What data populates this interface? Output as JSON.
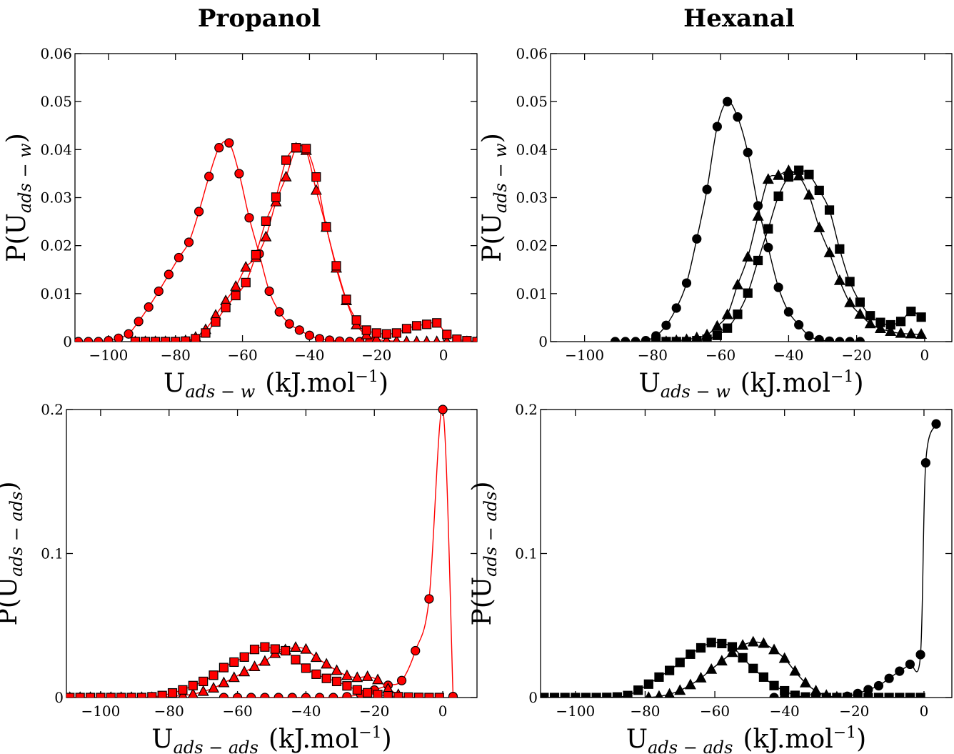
{
  "titles": {
    "left": "Propanol",
    "right": "Hexanal"
  },
  "colors": {
    "propanol": "#ff0000",
    "hexanal": "#000000",
    "edge": "#000000"
  },
  "chart_data": [
    {
      "type": "line",
      "panel": "top-left",
      "title": "Propanol",
      "xlabel_main": "U",
      "xlabel_sub": "ads − w",
      "xlabel_unit": "(kJ.mol",
      "xlabel_sup": "−1",
      "ylabel_main": "P(U",
      "ylabel_sub": "ads − w",
      "xlim": [
        -110,
        10
      ],
      "ylim": [
        0,
        0.06
      ],
      "xticks": [
        -100,
        -80,
        -60,
        -40,
        -20,
        0
      ],
      "xtick_labels": [
        "−100",
        "−80",
        "−60",
        "−40",
        "−20",
        "0"
      ],
      "yticks": [
        0,
        0.01,
        0.02,
        0.03,
        0.04,
        0.05,
        0.06
      ],
      "ytick_labels": [
        "0",
        "0.01",
        "0.02",
        "0.03",
        "0.04",
        "0.05",
        "0.06"
      ],
      "series": [
        {
          "marker": "circle",
          "x": [
            -109,
            -106,
            -103,
            -100,
            -97,
            -94,
            -91,
            -88,
            -85,
            -82,
            -79,
            -76,
            -73,
            -70,
            -67,
            -64,
            -61,
            -58,
            -55,
            -52,
            -49,
            -46,
            -43,
            -40,
            -37,
            -34,
            -31,
            -28,
            -25,
            -22
          ],
          "y": [
            0,
            0,
            0,
            0.0002,
            0.0007,
            0.0016,
            0.0042,
            0.0072,
            0.0105,
            0.014,
            0.0175,
            0.0207,
            0.0271,
            0.0344,
            0.0404,
            0.0414,
            0.035,
            0.0258,
            0.0183,
            0.0105,
            0.0062,
            0.0037,
            0.0024,
            0.0013,
            0.0006,
            0.0003,
            0.0001,
            0,
            0,
            0
          ]
        },
        {
          "marker": "triangle",
          "x": [
            -92,
            -89,
            -86,
            -83,
            -80,
            -77,
            -74,
            -71,
            -68,
            -65,
            -62,
            -59,
            -56,
            -53,
            -50,
            -47,
            -44,
            -41,
            -38,
            -35,
            -32,
            -29,
            -26,
            -23,
            -20,
            -17,
            -14,
            -11,
            -8,
            -5,
            -2,
            1,
            4,
            7,
            10
          ],
          "y": [
            0,
            0,
            0,
            0,
            0,
            0.0002,
            0.0009,
            0.0025,
            0.0055,
            0.0085,
            0.0115,
            0.0155,
            0.0175,
            0.0218,
            0.0291,
            0.0343,
            0.0403,
            0.0398,
            0.0315,
            0.0238,
            0.0153,
            0.0085,
            0.0035,
            0.0014,
            0.0005,
            0.0002,
            0.0001,
            0,
            0,
            0,
            0,
            0,
            0,
            0,
            0
          ]
        },
        {
          "marker": "square",
          "x": [
            -92,
            -89,
            -86,
            -83,
            -80,
            -77,
            -74,
            -71,
            -68,
            -65,
            -62,
            -59,
            -56,
            -53,
            -50,
            -47,
            -44,
            -41,
            -38,
            -35,
            -32,
            -29,
            -26,
            -23,
            -20,
            -17,
            -14,
            -11,
            -8,
            -5,
            -2,
            1,
            4,
            7,
            10
          ],
          "y": [
            0,
            0,
            0,
            0,
            0,
            0.0001,
            0.0006,
            0.0018,
            0.0041,
            0.0071,
            0.0096,
            0.0123,
            0.0181,
            0.0251,
            0.0301,
            0.0378,
            0.0404,
            0.0402,
            0.0343,
            0.0239,
            0.0158,
            0.0088,
            0.0045,
            0.0024,
            0.0018,
            0.0016,
            0.0018,
            0.0027,
            0.0033,
            0.0036,
            0.0039,
            0.0015,
            0.0005,
            0.0002,
            0
          ]
        }
      ]
    },
    {
      "type": "line",
      "panel": "top-right",
      "title": "Hexanal",
      "xlabel_main": "U",
      "xlabel_sub": "ads − w",
      "xlabel_unit": "(kJ.mol",
      "xlabel_sup": "−1",
      "ylabel_main": "P(U",
      "ylabel_sub": "ads − w",
      "xlim": [
        -110,
        8
      ],
      "ylim": [
        0,
        0.06
      ],
      "xticks": [
        -100,
        -80,
        -60,
        -40,
        -20,
        0
      ],
      "xtick_labels": [
        "−100",
        "−80",
        "−60",
        "−40",
        "−20",
        "0"
      ],
      "yticks": [
        0,
        0.01,
        0.02,
        0.03,
        0.04,
        0.05,
        0.06
      ],
      "ytick_labels": [
        "0",
        "0.01",
        "0.02",
        "0.03",
        "0.04",
        "0.05",
        "0.06"
      ],
      "series": [
        {
          "marker": "circle",
          "x": [
            -91,
            -88,
            -85,
            -82,
            -79,
            -76,
            -73,
            -70,
            -67,
            -64,
            -61,
            -58,
            -55,
            -52,
            -49,
            -46,
            -43,
            -40,
            -37,
            -34,
            -31,
            -28,
            -25,
            -22,
            -19
          ],
          "y": [
            0,
            0,
            0,
            0.0002,
            0.0012,
            0.0034,
            0.007,
            0.0122,
            0.0214,
            0.0317,
            0.0448,
            0.05,
            0.0468,
            0.0394,
            0.0283,
            0.0196,
            0.0113,
            0.0062,
            0.0035,
            0.0012,
            0.0004,
            0.0001,
            0,
            0,
            0
          ]
        },
        {
          "marker": "triangle",
          "x": [
            -79,
            -76,
            -73,
            -70,
            -67,
            -64,
            -61,
            -58,
            -55,
            -52,
            -49,
            -46,
            -43,
            -40,
            -37,
            -34,
            -31,
            -28,
            -25,
            -22,
            -19,
            -16,
            -13,
            -10,
            -7,
            -4,
            -1
          ],
          "y": [
            0,
            0,
            0.0002,
            0.0004,
            0.0008,
            0.0014,
            0.0032,
            0.0056,
            0.0118,
            0.0176,
            0.0261,
            0.0338,
            0.0346,
            0.0356,
            0.0345,
            0.0305,
            0.0237,
            0.0185,
            0.0127,
            0.0081,
            0.0057,
            0.0037,
            0.0027,
            0.0021,
            0.0017,
            0.0016,
            0.0015
          ]
        },
        {
          "marker": "square",
          "x": [
            -79,
            -76,
            -73,
            -70,
            -67,
            -64,
            -61,
            -58,
            -55,
            -52,
            -49,
            -46,
            -43,
            -40,
            -37,
            -34,
            -31,
            -28,
            -25,
            -22,
            -19,
            -16,
            -13,
            -10,
            -7,
            -4,
            -1
          ],
          "y": [
            0,
            0,
            0,
            0,
            0.0002,
            0.0005,
            0.0013,
            0.0028,
            0.0057,
            0.0101,
            0.0169,
            0.0235,
            0.0303,
            0.0343,
            0.0357,
            0.0348,
            0.0315,
            0.0274,
            0.0193,
            0.0125,
            0.0082,
            0.0054,
            0.004,
            0.0035,
            0.0042,
            0.0063,
            0.0051
          ]
        }
      ]
    },
    {
      "type": "line",
      "panel": "bottom-left",
      "xlabel_main": "U",
      "xlabel_sub": "ads − ads",
      "xlabel_unit": "(kJ.mol",
      "xlabel_sup": "−1",
      "ylabel_main": "P(U",
      "ylabel_sub": "ads − ads",
      "xlim": [
        -110,
        10
      ],
      "ylim": [
        0,
        0.2
      ],
      "xticks": [
        -100,
        -80,
        -60,
        -40,
        -20,
        0
      ],
      "xtick_labels": [
        "−100",
        "−80",
        "−60",
        "−40",
        "−20",
        "0"
      ],
      "yticks": [
        0,
        0.1,
        0.2
      ],
      "ytick_labels": [
        "0",
        "0.1",
        "0.2"
      ],
      "series": [
        {
          "marker": "circle",
          "x": [
            -64,
            -60,
            -56,
            -52,
            -48,
            -44,
            -40,
            -36,
            -32,
            -28,
            -24,
            -20,
            -16,
            -12,
            -8,
            -4,
            0,
            3
          ],
          "y": [
            0,
            0,
            0,
            0,
            0,
            0,
            0,
            0,
            0,
            0.0006,
            0.0023,
            0.0052,
            0.0085,
            0.0118,
            0.0325,
            0.0685,
            0.2,
            0.0007
          ]
        },
        {
          "marker": "triangle",
          "x": [
            -109,
            -106,
            -103,
            -100,
            -97,
            -94,
            -91,
            -88,
            -85,
            -82,
            -79,
            -76,
            -73,
            -70,
            -67,
            -64,
            -61,
            -58,
            -55,
            -52,
            -49,
            -46,
            -43,
            -40,
            -37,
            -34,
            -31,
            -28,
            -25,
            -22,
            -19,
            -16,
            -13
          ],
          "y": [
            0,
            0,
            0,
            0,
            0,
            0,
            0,
            0,
            0,
            0.0002,
            0.0008,
            0.0015,
            0.0023,
            0.0042,
            0.0065,
            0.0102,
            0.0138,
            0.0178,
            0.0214,
            0.0251,
            0.0305,
            0.0332,
            0.0348,
            0.0335,
            0.0278,
            0.0232,
            0.0187,
            0.0152,
            0.0138,
            0.0145,
            0.0123,
            0.0061,
            0.002
          ]
        },
        {
          "marker": "square",
          "x": [
            -109,
            -106,
            -103,
            -100,
            -97,
            -94,
            -91,
            -88,
            -85,
            -82,
            -79,
            -76,
            -73,
            -70,
            -67,
            -64,
            -61,
            -58,
            -55,
            -52,
            -49,
            -46,
            -43,
            -40,
            -37,
            -34,
            -31,
            -28,
            -25,
            -22,
            -19,
            -16,
            -13,
            -10,
            -7,
            -4,
            -1
          ],
          "y": [
            0,
            0,
            0,
            0,
            0,
            0,
            0,
            0,
            0.0005,
            0.0014,
            0.0032,
            0.0053,
            0.0083,
            0.0112,
            0.0155,
            0.0208,
            0.0246,
            0.0281,
            0.0334,
            0.0351,
            0.0337,
            0.0325,
            0.0263,
            0.0204,
            0.0162,
            0.0133,
            0.0112,
            0.0081,
            0.0053,
            0.0033,
            0.0021,
            0.0012,
            0.0006,
            0.0003,
            0.0001,
            0,
            0
          ]
        }
      ]
    },
    {
      "type": "line",
      "panel": "bottom-right",
      "xlabel_main": "U",
      "xlabel_sub": "ads − ads",
      "xlabel_unit": "(kJ.mol",
      "xlabel_sup": "−1",
      "ylabel_main": "P(U",
      "ylabel_sub": "ads − ads",
      "xlim": [
        -110,
        8
      ],
      "ylim": [
        0,
        0.2
      ],
      "xticks": [
        -100,
        -80,
        -60,
        -40,
        -20,
        0
      ],
      "xtick_labels": [
        "−100",
        "−80",
        "−60",
        "−40",
        "−20",
        "0"
      ],
      "yticks": [
        0,
        0.1,
        0.2
      ],
      "ytick_labels": [
        "0",
        "0.1",
        "0.2"
      ],
      "series": [
        {
          "marker": "circle",
          "x": [
            -43,
            -40,
            -37,
            -34,
            -31,
            -28,
            -25,
            -22,
            -19,
            -16,
            -13,
            -10,
            -7,
            -4,
            -1,
            0.5,
            3.5
          ],
          "y": [
            0,
            0,
            0,
            0,
            0,
            0,
            0,
            0.0009,
            0.0028,
            0.0055,
            0.0082,
            0.0133,
            0.0183,
            0.0231,
            0.0298,
            0.163,
            0.19
          ]
        },
        {
          "marker": "triangle",
          "x": [
            -79,
            -76,
            -73,
            -70,
            -67,
            -64,
            -61,
            -58,
            -55,
            -52,
            -49,
            -46,
            -43,
            -40,
            -37,
            -34,
            -31,
            -28,
            -25
          ],
          "y": [
            0,
            0.0008,
            0.0023,
            0.0049,
            0.0088,
            0.0135,
            0.0195,
            0.0253,
            0.0312,
            0.0363,
            0.0385,
            0.0375,
            0.0331,
            0.0271,
            0.0182,
            0.0101,
            0.0046,
            0.0015,
            0.0003
          ]
        },
        {
          "marker": "square",
          "x": [
            -109,
            -106,
            -103,
            -100,
            -97,
            -94,
            -91,
            -88,
            -85,
            -82,
            -79,
            -76,
            -73,
            -70,
            -67,
            -64,
            -61,
            -58,
            -55,
            -52,
            -49,
            -46,
            -43,
            -40,
            -37,
            -34,
            -31,
            -28,
            -25,
            -22,
            -19,
            -16,
            -13,
            -10,
            -7,
            -4,
            -1
          ],
          "y": [
            0,
            0,
            0,
            0,
            0,
            0,
            0.0001,
            0.0004,
            0.0014,
            0.0051,
            0.0093,
            0.0142,
            0.0188,
            0.0244,
            0.0301,
            0.0345,
            0.0382,
            0.0375,
            0.0352,
            0.0276,
            0.0202,
            0.0142,
            0.0083,
            0.0047,
            0.0015,
            0.0004,
            0.0001,
            0,
            0,
            0,
            0,
            0,
            0,
            0,
            0,
            0,
            0
          ]
        }
      ]
    }
  ]
}
